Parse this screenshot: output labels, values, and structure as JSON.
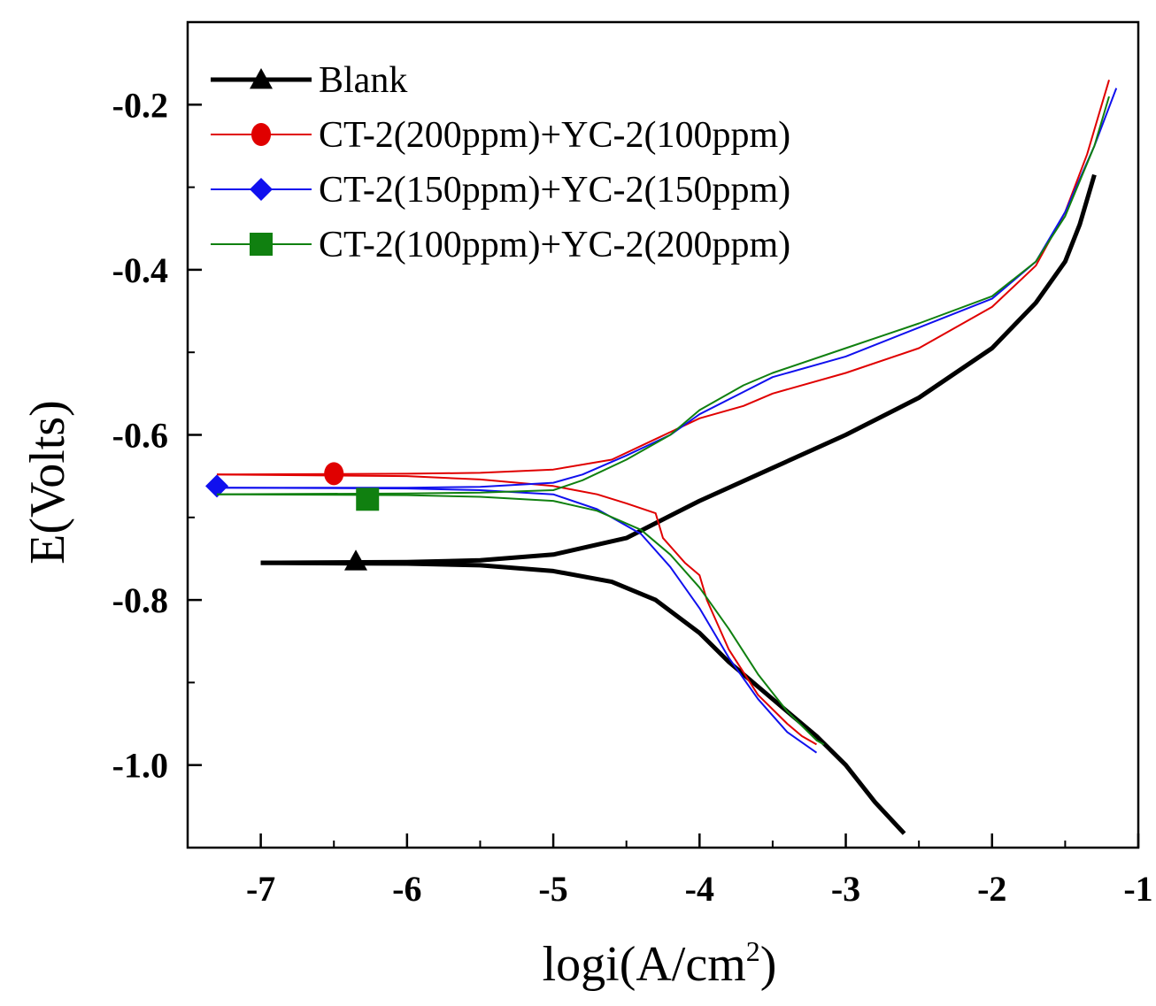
{
  "chart_data": {
    "type": "line",
    "title": "",
    "xlabel": "logi(A/cm",
    "xlabel_sup": "2",
    "xlabel_close": ")",
    "ylabel": "E(Volts)",
    "xlim": [
      -7.5,
      -1
    ],
    "ylim": [
      -1.1,
      -0.1
    ],
    "x_ticks": [
      -7,
      -6,
      -5,
      -4,
      -3,
      -2,
      -1
    ],
    "x_tick_labels": [
      "-7",
      "-6",
      "-5",
      "-4",
      "-3",
      "-2",
      "-1"
    ],
    "y_ticks": [
      -0.2,
      -0.4,
      -0.6,
      -0.8,
      -1.0
    ],
    "y_tick_labels": [
      "-0.2",
      "-0.4",
      "-0.6",
      "-0.8",
      "-1.0"
    ],
    "legend_position": "top-left",
    "grid": false,
    "series": [
      {
        "name": "Blank",
        "color": "#000000",
        "marker": "triangle",
        "marker_point": [
          -6.35,
          -0.753
        ],
        "anodic": [
          [
            -7.0,
            -0.755
          ],
          [
            -6.0,
            -0.754
          ],
          [
            -5.5,
            -0.752
          ],
          [
            -5.0,
            -0.745
          ],
          [
            -4.5,
            -0.725
          ],
          [
            -4.0,
            -0.68
          ],
          [
            -3.5,
            -0.64
          ],
          [
            -3.0,
            -0.6
          ],
          [
            -2.5,
            -0.555
          ],
          [
            -2.0,
            -0.495
          ],
          [
            -1.7,
            -0.44
          ],
          [
            -1.5,
            -0.39
          ],
          [
            -1.4,
            -0.345
          ],
          [
            -1.3,
            -0.285
          ]
        ],
        "cathodic": [
          [
            -7.0,
            -0.755
          ],
          [
            -6.0,
            -0.756
          ],
          [
            -5.5,
            -0.758
          ],
          [
            -5.0,
            -0.765
          ],
          [
            -4.6,
            -0.778
          ],
          [
            -4.3,
            -0.8
          ],
          [
            -4.0,
            -0.84
          ],
          [
            -3.8,
            -0.875
          ],
          [
            -3.6,
            -0.905
          ],
          [
            -3.4,
            -0.935
          ],
          [
            -3.2,
            -0.965
          ],
          [
            -3.0,
            -1.0
          ],
          [
            -2.8,
            -1.045
          ],
          [
            -2.6,
            -1.083
          ]
        ]
      },
      {
        "name": "CT-2(200ppm)+YC-2(100ppm)",
        "color": "#e00000",
        "marker": "circle",
        "marker_point": [
          -6.5,
          -0.647
        ],
        "anodic": [
          [
            -7.3,
            -0.648
          ],
          [
            -6.0,
            -0.647
          ],
          [
            -5.5,
            -0.646
          ],
          [
            -5.0,
            -0.642
          ],
          [
            -4.6,
            -0.63
          ],
          [
            -4.3,
            -0.605
          ],
          [
            -4.0,
            -0.58
          ],
          [
            -3.7,
            -0.565
          ],
          [
            -3.5,
            -0.55
          ],
          [
            -3.0,
            -0.525
          ],
          [
            -2.5,
            -0.495
          ],
          [
            -2.0,
            -0.445
          ],
          [
            -1.7,
            -0.395
          ],
          [
            -1.5,
            -0.33
          ],
          [
            -1.35,
            -0.26
          ],
          [
            -1.25,
            -0.2
          ],
          [
            -1.2,
            -0.17
          ]
        ],
        "cathodic": [
          [
            -7.3,
            -0.648
          ],
          [
            -6.0,
            -0.65
          ],
          [
            -5.5,
            -0.654
          ],
          [
            -5.0,
            -0.662
          ],
          [
            -4.7,
            -0.672
          ],
          [
            -4.5,
            -0.683
          ],
          [
            -4.3,
            -0.695
          ],
          [
            -4.25,
            -0.725
          ],
          [
            -4.1,
            -0.755
          ],
          [
            -4.0,
            -0.77
          ],
          [
            -3.95,
            -0.8
          ],
          [
            -3.8,
            -0.86
          ],
          [
            -3.6,
            -0.915
          ],
          [
            -3.4,
            -0.95
          ],
          [
            -3.3,
            -0.965
          ],
          [
            -3.2,
            -0.975
          ]
        ]
      },
      {
        "name": "CT-2(150ppm)+YC-2(150ppm)",
        "color": "#1010ee",
        "marker": "diamond",
        "marker_point": [
          -7.3,
          -0.662
        ],
        "anodic": [
          [
            -7.3,
            -0.664
          ],
          [
            -6.0,
            -0.664
          ],
          [
            -5.5,
            -0.663
          ],
          [
            -5.0,
            -0.658
          ],
          [
            -4.8,
            -0.648
          ],
          [
            -4.5,
            -0.625
          ],
          [
            -4.2,
            -0.6
          ],
          [
            -4.0,
            -0.575
          ],
          [
            -3.7,
            -0.548
          ],
          [
            -3.5,
            -0.53
          ],
          [
            -3.0,
            -0.505
          ],
          [
            -2.5,
            -0.47
          ],
          [
            -2.0,
            -0.435
          ],
          [
            -1.7,
            -0.39
          ],
          [
            -1.5,
            -0.33
          ],
          [
            -1.3,
            -0.25
          ],
          [
            -1.15,
            -0.18
          ]
        ],
        "cathodic": [
          [
            -7.3,
            -0.664
          ],
          [
            -6.0,
            -0.665
          ],
          [
            -5.5,
            -0.667
          ],
          [
            -5.0,
            -0.672
          ],
          [
            -4.7,
            -0.69
          ],
          [
            -4.4,
            -0.72
          ],
          [
            -4.2,
            -0.76
          ],
          [
            -4.0,
            -0.81
          ],
          [
            -3.8,
            -0.87
          ],
          [
            -3.6,
            -0.92
          ],
          [
            -3.4,
            -0.96
          ],
          [
            -3.2,
            -0.985
          ]
        ]
      },
      {
        "name": "CT-2(100ppm)+YC-2(200ppm)",
        "color": "#108010",
        "marker": "square",
        "marker_point": [
          -6.27,
          -0.678
        ],
        "anodic": [
          [
            -7.3,
            -0.672
          ],
          [
            -6.0,
            -0.671
          ],
          [
            -5.5,
            -0.67
          ],
          [
            -5.0,
            -0.667
          ],
          [
            -4.8,
            -0.655
          ],
          [
            -4.5,
            -0.63
          ],
          [
            -4.2,
            -0.6
          ],
          [
            -4.0,
            -0.57
          ],
          [
            -3.7,
            -0.54
          ],
          [
            -3.5,
            -0.525
          ],
          [
            -3.0,
            -0.495
          ],
          [
            -2.5,
            -0.465
          ],
          [
            -2.0,
            -0.432
          ],
          [
            -1.7,
            -0.39
          ],
          [
            -1.5,
            -0.335
          ],
          [
            -1.3,
            -0.25
          ],
          [
            -1.2,
            -0.19
          ]
        ],
        "cathodic": [
          [
            -7.3,
            -0.672
          ],
          [
            -6.0,
            -0.673
          ],
          [
            -5.5,
            -0.675
          ],
          [
            -5.0,
            -0.68
          ],
          [
            -4.7,
            -0.692
          ],
          [
            -4.4,
            -0.715
          ],
          [
            -4.2,
            -0.745
          ],
          [
            -4.0,
            -0.785
          ],
          [
            -3.8,
            -0.835
          ],
          [
            -3.6,
            -0.89
          ],
          [
            -3.4,
            -0.935
          ],
          [
            -3.2,
            -0.97
          ],
          [
            -3.15,
            -0.975
          ]
        ]
      }
    ]
  }
}
